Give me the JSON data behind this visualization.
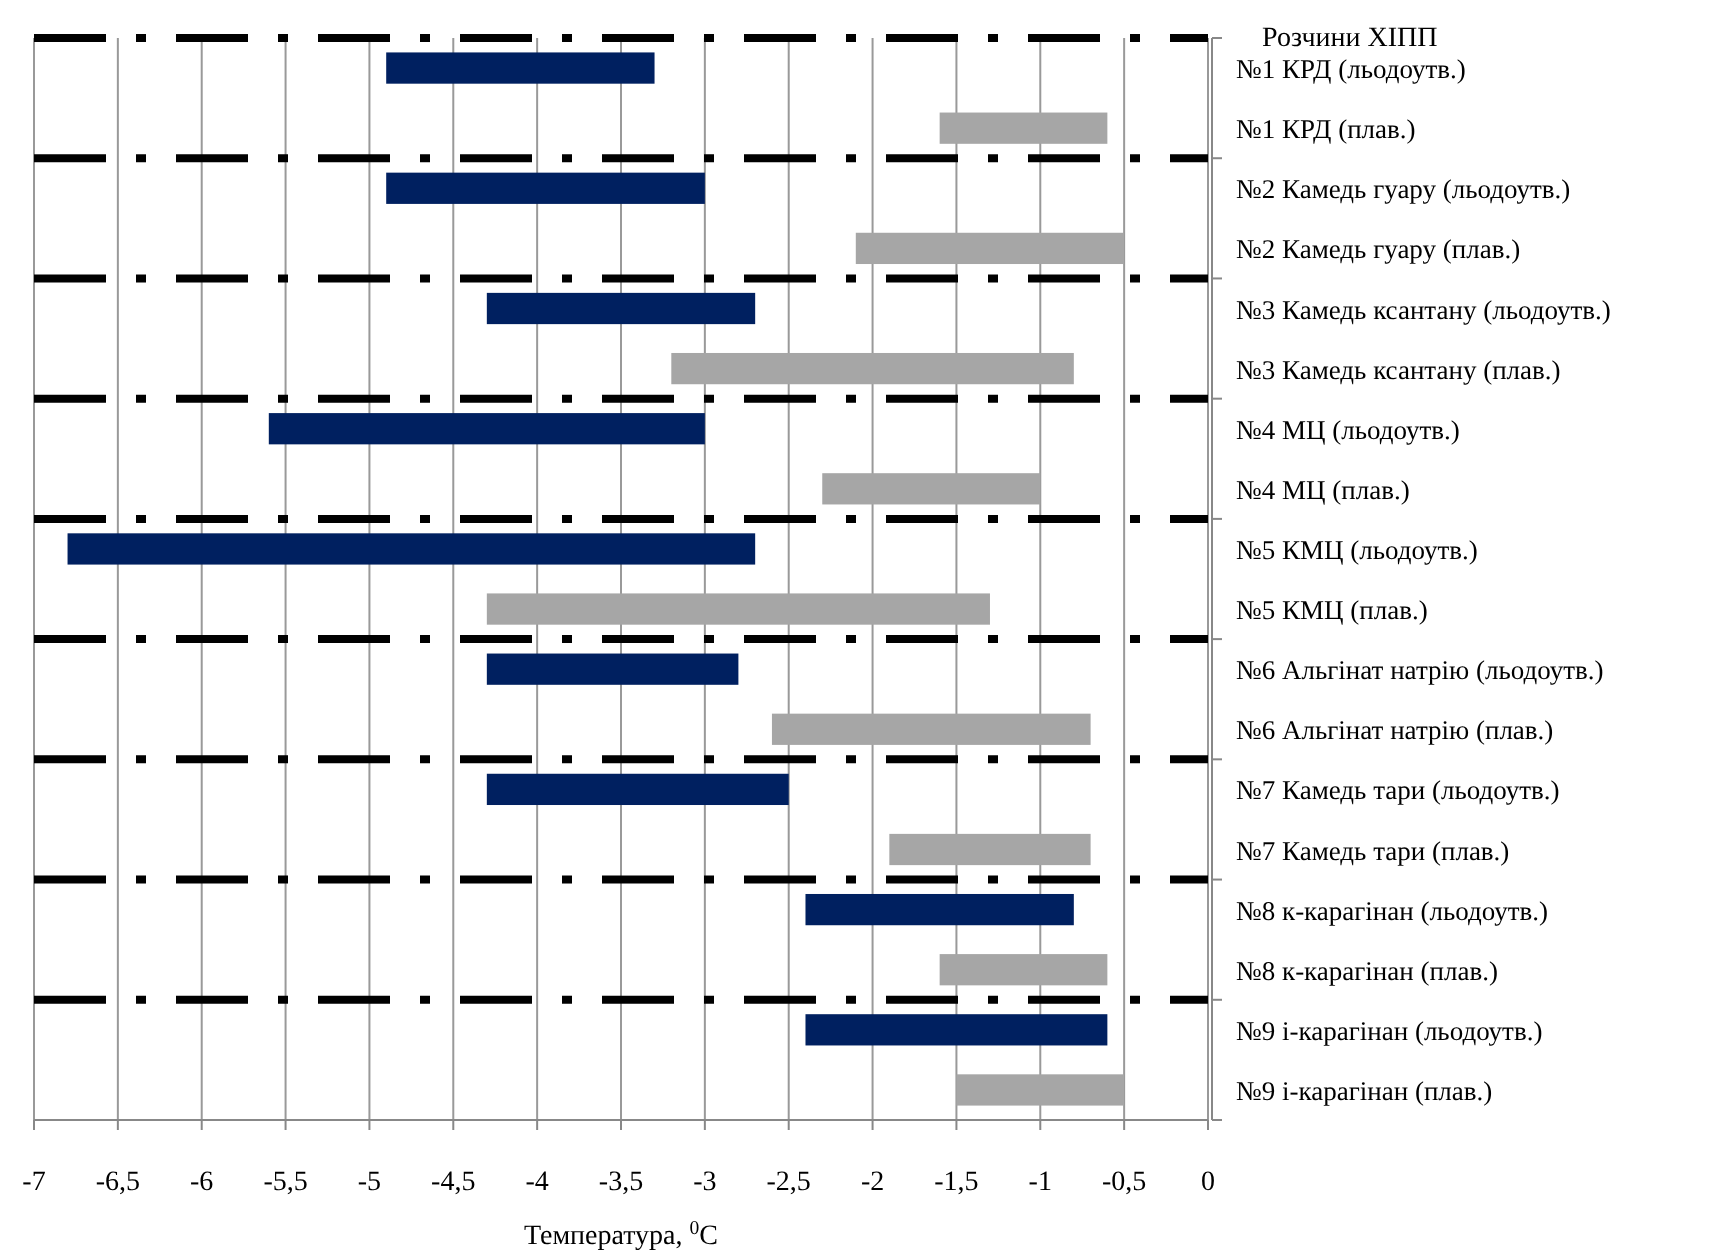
{
  "chart_data": {
    "type": "bar",
    "orientation": "horizontal",
    "xlabel": "Температура, $^{0}$С",
    "ylabel": "Розчини ХІПП",
    "categories": [
      "№1 КРД (льодоутв.)",
      "№1 КРД (плав.)",
      "№2 Камедь гуару (льодоутв.)",
      "№2 Камедь гуару (плав.)",
      "№3 Камедь ксантану (льодоутв.)",
      "№3 Камедь ксантану (плав.)",
      "№4 МЦ (льодоутв.)",
      "№4 МЦ (плав.)",
      "№5 КМЦ (льодоутв.)",
      "№5 КМЦ (плав.)",
      "№6 Альгінат натрію (льодоутв.)",
      "№6 Альгінат натрію (плав.)",
      "№7 Камедь тари (льодоутв.)",
      "№7 Камедь тари (плав.)",
      "№8 к-карагінан (льодоутв.)",
      "№8 к-карагінан (плав.)",
      "№9 і-карагінан (льодоутв.)",
      "№9 і-карагінан (плав.)"
    ],
    "base": [
      -4.9,
      -1.6,
      -4.9,
      -2.1,
      -4.3,
      -3.2,
      -5.6,
      -2.3,
      -6.8,
      -4.3,
      -4.3,
      -2.6,
      -4.3,
      -1.9,
      -2.4,
      -1.6,
      -2.4,
      -1.5
    ],
    "values": [
      1.6,
      1.0,
      1.9,
      1.6,
      1.6,
      2.4,
      2.6,
      1.3,
      4.1,
      3.0,
      1.5,
      1.9,
      1.8,
      1.2,
      1.6,
      1.0,
      1.8,
      1.0
    ],
    "colors": [
      "#002060",
      "#a6a6a6",
      "#002060",
      "#a6a6a6",
      "#002060",
      "#a6a6a6",
      "#002060",
      "#a6a6a6",
      "#002060",
      "#a6a6a6",
      "#002060",
      "#a6a6a6",
      "#002060",
      "#a6a6a6",
      "#002060",
      "#a6a6a6",
      "#002060",
      "#a6a6a6"
    ],
    "xlim": [
      -7,
      0
    ],
    "xticks": [
      -7,
      {
        "value": -6.5,
        "label": "-6,5"
      },
      -6,
      {
        "value": -5.5,
        "label": "-5,5"
      },
      -5,
      {
        "value": -4.5,
        "label": "-4,5"
      },
      -4,
      {
        "value": -3.5,
        "label": "-3,5"
      },
      -3,
      {
        "value": -2.5,
        "label": "-2,5"
      },
      -2,
      {
        "value": -1.5,
        "label": "-1,5"
      },
      -1,
      {
        "value": -0.5,
        "label": "-0,5"
      },
      0
    ],
    "grid": true
  }
}
